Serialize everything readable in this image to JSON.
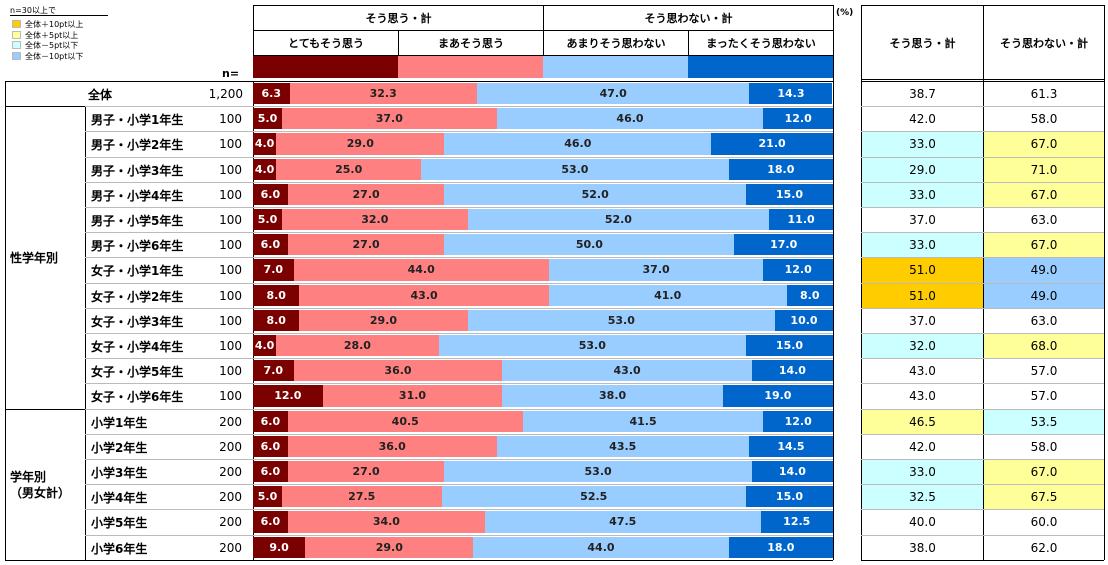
{
  "legend": {
    "title": "n=30以上で",
    "items": [
      {
        "label": "全体＋10pt以上",
        "color": "#ffcc00"
      },
      {
        "label": "全体＋5pt以上",
        "color": "#ffff99"
      },
      {
        "label": "全体－5pt以下",
        "color": "#ccffff"
      },
      {
        "label": "全体－10pt以下",
        "color": "#99ccff"
      }
    ]
  },
  "n_label": "n=",
  "unit": "(%)",
  "groups": [
    {
      "label": "そう思う・計",
      "span": [
        0,
        1
      ]
    },
    {
      "label": "そう思わない・計",
      "span": [
        2,
        3
      ]
    }
  ],
  "summary_headers": [
    "そう思う・計",
    "そう思わない・計"
  ],
  "categories_labels": [
    "とてもそう思う",
    "まあそう思う",
    "あまりそう思わない",
    "まったくそう思わない"
  ],
  "colors": [
    "#7b0000",
    "#ff8080",
    "#99ccff",
    "#0066cc"
  ],
  "highlight_colors": {
    "plus10": "#ffcc00",
    "plus5": "#ffff99",
    "minus5": "#ccffff",
    "minus10": "#99ccff",
    "none": "#ffffff"
  },
  "sections": [
    {
      "label": "",
      "rows": [
        0
      ]
    },
    {
      "label": "性学年別",
      "rows": [
        1,
        2,
        3,
        4,
        5,
        6,
        7,
        8,
        9,
        10,
        11,
        12
      ]
    },
    {
      "label": "学年別\n（男女計）",
      "rows": [
        13,
        14,
        15,
        16,
        17,
        18
      ]
    }
  ],
  "chart_data": {
    "type": "bar",
    "stacked": true,
    "orientation": "horizontal",
    "series_names": [
      "とてもそう思う",
      "まあそう思う",
      "あまりそう思わない",
      "まったくそう思わない"
    ],
    "rows": [
      {
        "label": "全体",
        "n": "1,200",
        "values": [
          6.3,
          32.3,
          47.0,
          14.3
        ],
        "agree": "38.7",
        "disagree": "61.3",
        "hl": [
          "none",
          "none"
        ]
      },
      {
        "label": "男子・小学1年生",
        "n": "100",
        "values": [
          5.0,
          37.0,
          46.0,
          12.0
        ],
        "agree": "42.0",
        "disagree": "58.0",
        "hl": [
          "none",
          "none"
        ]
      },
      {
        "label": "男子・小学2年生",
        "n": "100",
        "values": [
          4.0,
          29.0,
          46.0,
          21.0
        ],
        "agree": "33.0",
        "disagree": "67.0",
        "hl": [
          "minus5",
          "plus5"
        ]
      },
      {
        "label": "男子・小学3年生",
        "n": "100",
        "values": [
          4.0,
          25.0,
          53.0,
          18.0
        ],
        "agree": "29.0",
        "disagree": "71.0",
        "hl": [
          "minus5",
          "plus5"
        ]
      },
      {
        "label": "男子・小学4年生",
        "n": "100",
        "values": [
          6.0,
          27.0,
          52.0,
          15.0
        ],
        "agree": "33.0",
        "disagree": "67.0",
        "hl": [
          "minus5",
          "plus5"
        ]
      },
      {
        "label": "男子・小学5年生",
        "n": "100",
        "values": [
          5.0,
          32.0,
          52.0,
          11.0
        ],
        "agree": "37.0",
        "disagree": "63.0",
        "hl": [
          "none",
          "none"
        ]
      },
      {
        "label": "男子・小学6年生",
        "n": "100",
        "values": [
          6.0,
          27.0,
          50.0,
          17.0
        ],
        "agree": "33.0",
        "disagree": "67.0",
        "hl": [
          "minus5",
          "plus5"
        ]
      },
      {
        "label": "女子・小学1年生",
        "n": "100",
        "values": [
          7.0,
          44.0,
          37.0,
          12.0
        ],
        "agree": "51.0",
        "disagree": "49.0",
        "hl": [
          "plus10",
          "minus10"
        ]
      },
      {
        "label": "女子・小学2年生",
        "n": "100",
        "values": [
          8.0,
          43.0,
          41.0,
          8.0
        ],
        "agree": "51.0",
        "disagree": "49.0",
        "hl": [
          "plus10",
          "minus10"
        ]
      },
      {
        "label": "女子・小学3年生",
        "n": "100",
        "values": [
          8.0,
          29.0,
          53.0,
          10.0
        ],
        "agree": "37.0",
        "disagree": "63.0",
        "hl": [
          "none",
          "none"
        ]
      },
      {
        "label": "女子・小学4年生",
        "n": "100",
        "values": [
          4.0,
          28.0,
          53.0,
          15.0
        ],
        "agree": "32.0",
        "disagree": "68.0",
        "hl": [
          "minus5",
          "plus5"
        ]
      },
      {
        "label": "女子・小学5年生",
        "n": "100",
        "values": [
          7.0,
          36.0,
          43.0,
          14.0
        ],
        "agree": "43.0",
        "disagree": "57.0",
        "hl": [
          "none",
          "none"
        ]
      },
      {
        "label": "女子・小学6年生",
        "n": "100",
        "values": [
          12.0,
          31.0,
          38.0,
          19.0
        ],
        "agree": "43.0",
        "disagree": "57.0",
        "hl": [
          "none",
          "none"
        ]
      },
      {
        "label": "小学1年生",
        "n": "200",
        "values": [
          6.0,
          40.5,
          41.5,
          12.0
        ],
        "agree": "46.5",
        "disagree": "53.5",
        "hl": [
          "plus5",
          "minus5"
        ]
      },
      {
        "label": "小学2年生",
        "n": "200",
        "values": [
          6.0,
          36.0,
          43.5,
          14.5
        ],
        "agree": "42.0",
        "disagree": "58.0",
        "hl": [
          "none",
          "none"
        ]
      },
      {
        "label": "小学3年生",
        "n": "200",
        "values": [
          6.0,
          27.0,
          53.0,
          14.0
        ],
        "agree": "33.0",
        "disagree": "67.0",
        "hl": [
          "minus5",
          "plus5"
        ]
      },
      {
        "label": "小学4年生",
        "n": "200",
        "values": [
          5.0,
          27.5,
          52.5,
          15.0
        ],
        "agree": "32.5",
        "disagree": "67.5",
        "hl": [
          "minus5",
          "plus5"
        ]
      },
      {
        "label": "小学5年生",
        "n": "200",
        "values": [
          6.0,
          34.0,
          47.5,
          12.5
        ],
        "agree": "40.0",
        "disagree": "60.0",
        "hl": [
          "none",
          "none"
        ]
      },
      {
        "label": "小学6年生",
        "n": "200",
        "values": [
          9.0,
          29.0,
          44.0,
          18.0
        ],
        "agree": "38.0",
        "disagree": "62.0",
        "hl": [
          "none",
          "none"
        ]
      }
    ]
  }
}
